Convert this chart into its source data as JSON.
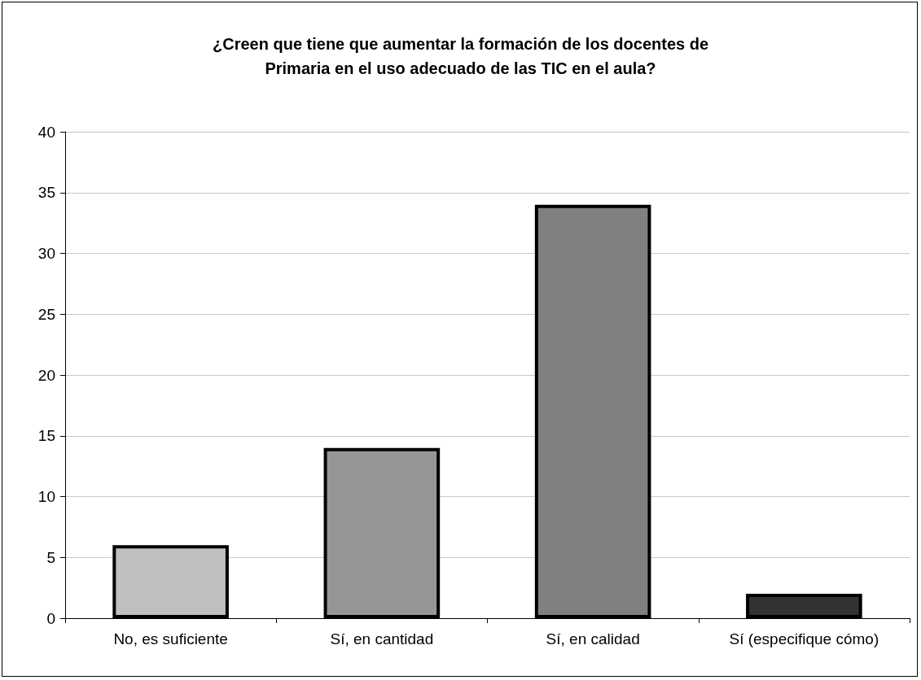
{
  "chart_data": {
    "type": "bar",
    "title": "¿Creen que tiene que aumentar la formación de los docentes de\nPrimaria en el uso adecuado de las TIC en el aula?",
    "categories": [
      "No, es suficiente",
      "Sí, en cantidad",
      "Sí, en calidad",
      "Sí (especifique cómo)"
    ],
    "values": [
      6,
      14,
      34,
      2
    ],
    "colors": [
      "#c0c0c0",
      "#969696",
      "#808080",
      "#333333"
    ],
    "ylim": [
      0,
      40
    ],
    "yticks": [
      0,
      5,
      10,
      15,
      20,
      25,
      30,
      35,
      40
    ],
    "grid": "y"
  }
}
